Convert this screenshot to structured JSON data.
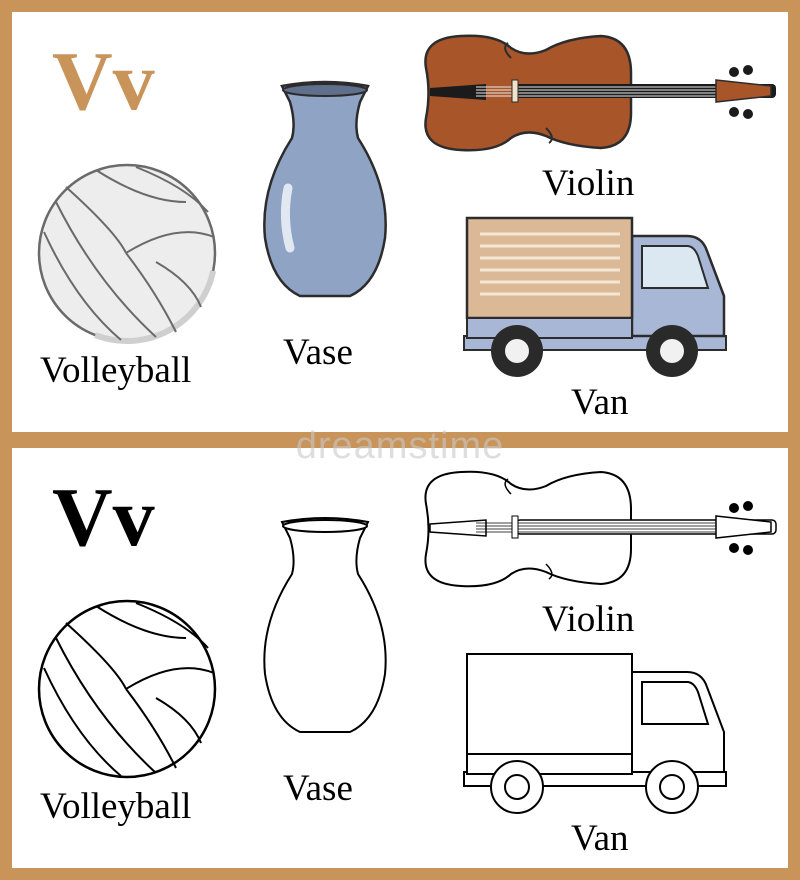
{
  "colors": {
    "border": "#c9945a",
    "letter_colored": "#c9945a",
    "letter_outline": "#000000",
    "vase_fill": "#8fa3c4",
    "violin_fill": "#a8552a",
    "van_cargo": "#dcb996",
    "van_cab": "#a9b7d6"
  },
  "top_panel": {
    "letter": "Vv",
    "labels": {
      "volleyball": "Volleyball",
      "vase": "Vase",
      "violin": "Violin",
      "van": "Van"
    }
  },
  "bottom_panel": {
    "letter": "Vv",
    "labels": {
      "volleyball": "Volleyball",
      "vase": "Vase",
      "violin": "Violin",
      "van": "Van"
    }
  },
  "watermark": "dreamstime"
}
